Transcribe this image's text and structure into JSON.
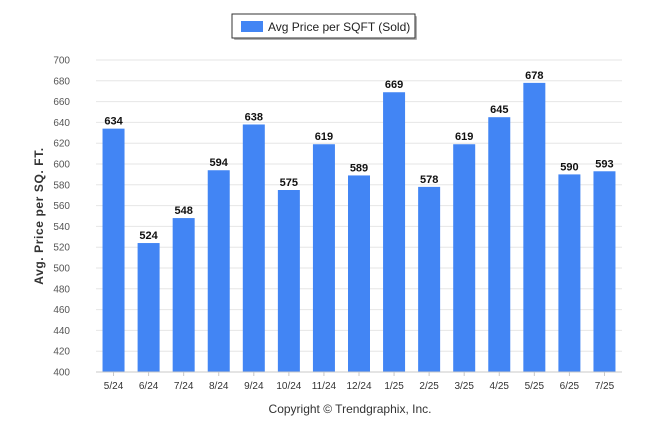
{
  "legend": {
    "label": "Avg Price per SQFT (Sold)"
  },
  "credit": "Copyright © Trendgraphix, Inc.",
  "chart_data": {
    "type": "bar",
    "ylabel": "Avg. Price per SQ. FT.",
    "xlabel": "",
    "categories": [
      "5/24",
      "6/24",
      "7/24",
      "8/24",
      "9/24",
      "10/24",
      "11/24",
      "12/24",
      "1/25",
      "2/25",
      "3/25",
      "4/25",
      "5/25",
      "6/25",
      "7/25"
    ],
    "series": [
      {
        "name": "Avg Price per SQFT (Sold)",
        "values": [
          634,
          524,
          548,
          594,
          638,
          575,
          619,
          589,
          669,
          578,
          619,
          645,
          678,
          590,
          593
        ]
      }
    ],
    "ylim": [
      400,
      700
    ],
    "yticks": [
      400,
      420,
      440,
      460,
      480,
      500,
      520,
      540,
      560,
      580,
      600,
      620,
      640,
      660,
      680,
      700
    ],
    "bar_color": "#4285f4",
    "grid": true,
    "legend_position": "top-center",
    "data_labels": true
  }
}
